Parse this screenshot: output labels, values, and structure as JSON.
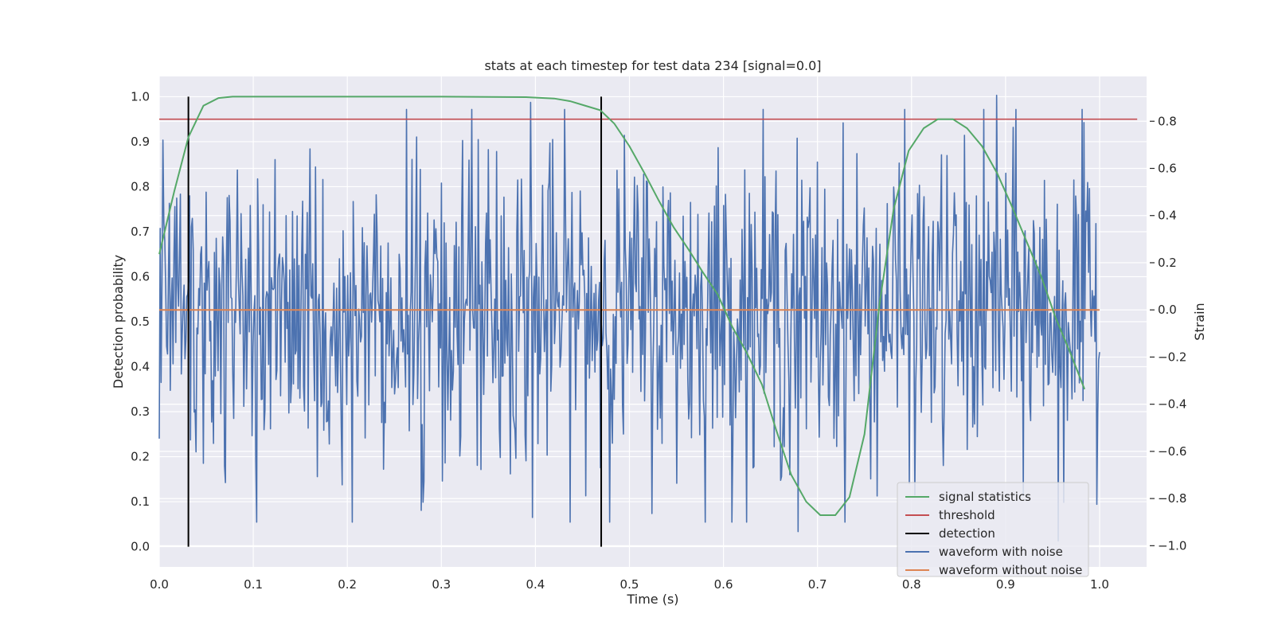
{
  "chart_data": {
    "type": "line",
    "title": "stats at each timestep for test data 234 [signal=0.0]",
    "xlabel": "Time (s)",
    "ylabel_left": "Detection probability",
    "ylabel_right": "Strain",
    "xlim": [
      0.0,
      1.05
    ],
    "ylim_left": [
      -0.045,
      1.045
    ],
    "ylim_right": [
      -1.09,
      0.99
    ],
    "x_ticks": [
      0.0,
      0.1,
      0.2,
      0.3,
      0.4,
      0.5,
      0.6,
      0.7,
      0.8,
      0.9,
      1.0
    ],
    "x_tick_labels": [
      "0.0",
      "0.1",
      "0.2",
      "0.3",
      "0.4",
      "0.5",
      "0.6",
      "0.7",
      "0.8",
      "0.9",
      "1.0"
    ],
    "y_left_ticks": [
      0.0,
      0.1,
      0.2,
      0.3,
      0.4,
      0.5,
      0.6,
      0.7,
      0.8,
      0.9,
      1.0
    ],
    "y_left_tick_labels": [
      "0.0",
      "0.1",
      "0.2",
      "0.3",
      "0.4",
      "0.5",
      "0.6",
      "0.7",
      "0.8",
      "0.9",
      "1.0"
    ],
    "y_right_ticks": [
      -1.0,
      -0.8,
      -0.6,
      -0.4,
      -0.2,
      0.0,
      0.2,
      0.4,
      0.6,
      0.8
    ],
    "y_right_tick_labels": [
      "−1.0",
      "−0.8",
      "−0.6",
      "−0.4",
      "−0.2",
      "0.0",
      "0.2",
      "0.4",
      "0.6",
      "0.8"
    ],
    "grid": true,
    "legend_position": "lower-right",
    "colors": {
      "background": "#eaeaf2",
      "grid": "#ffffff",
      "signal_statistics": "#55a868",
      "threshold": "#c44e52",
      "detection": "#000000",
      "waveform_with_noise": "#4c72b0",
      "waveform_without_noise": "#dd8452"
    },
    "series": [
      {
        "name": "signal statistics",
        "axis": "left",
        "x": [
          0.0,
          0.016,
          0.031,
          0.047,
          0.063,
          0.078,
          0.094,
          0.2,
          0.3,
          0.39,
          0.42,
          0.437,
          0.453,
          0.469,
          0.484,
          0.5,
          0.516,
          0.531,
          0.547,
          0.563,
          0.578,
          0.594,
          0.609,
          0.625,
          0.641,
          0.656,
          0.672,
          0.688,
          0.703,
          0.719,
          0.734,
          0.75,
          0.766,
          0.781,
          0.797,
          0.813,
          0.828,
          0.844,
          0.859,
          0.875,
          0.891,
          0.906,
          0.922,
          0.938,
          0.953,
          0.969,
          0.984
        ],
        "y": [
          0.65,
          0.79,
          0.91,
          0.98,
          0.997,
          1.0,
          1.0,
          1.0,
          1.0,
          0.999,
          0.996,
          0.99,
          0.98,
          0.97,
          0.94,
          0.89,
          0.83,
          0.77,
          0.71,
          0.66,
          0.61,
          0.56,
          0.49,
          0.43,
          0.36,
          0.26,
          0.16,
          0.1,
          0.07,
          0.07,
          0.11,
          0.25,
          0.54,
          0.75,
          0.88,
          0.93,
          0.95,
          0.95,
          0.93,
          0.89,
          0.83,
          0.76,
          0.68,
          0.6,
          0.51,
          0.43,
          0.35
        ]
      },
      {
        "name": "threshold",
        "axis": "left",
        "x": [
          0.0,
          1.04
        ],
        "y": [
          0.95,
          0.95
        ]
      },
      {
        "name": "detection",
        "axis": "left",
        "segments": [
          {
            "x": 0.031,
            "y": [
              0.0,
              1.0
            ]
          },
          {
            "x": 0.47,
            "y": [
              0.0,
              1.0
            ]
          }
        ]
      },
      {
        "name": "waveform with noise",
        "axis": "right",
        "x_range": [
          0.0,
          1.0
        ],
        "points": 1024,
        "mean": 0.0,
        "std": 0.33,
        "extrema": [
          {
            "x": 0.004,
            "y": 0.72
          },
          {
            "x": 0.395,
            "y": 0.88
          },
          {
            "x": 0.397,
            "y": -0.88
          },
          {
            "x": 0.679,
            "y": -0.94
          },
          {
            "x": 0.891,
            "y": 0.91
          },
          {
            "x": 0.956,
            "y": -0.98
          }
        ]
      },
      {
        "name": "waveform without noise",
        "axis": "right",
        "x": [
          0.0,
          1.0
        ],
        "y": [
          0.0,
          0.0
        ]
      }
    ],
    "legend": [
      "signal statistics",
      "threshold",
      "detection",
      "waveform with noise",
      "waveform without noise"
    ]
  }
}
